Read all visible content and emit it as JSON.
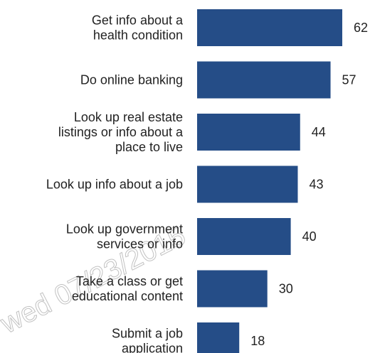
{
  "chart_data": {
    "type": "bar",
    "orientation": "horizontal",
    "categories": [
      "Get info about a\nhealth condition",
      "Do online banking",
      "Look up real estate\nlistings or info about a\nplace to live",
      "Look up info about a job",
      "Look up government\nservices or info",
      "Take a class or get\neducational content",
      "Submit a job\napplication"
    ],
    "values": [
      62,
      57,
      44,
      43,
      40,
      30,
      18
    ],
    "color": "#254d87",
    "annotations": [
      "wed 07/23/2015"
    ]
  }
}
